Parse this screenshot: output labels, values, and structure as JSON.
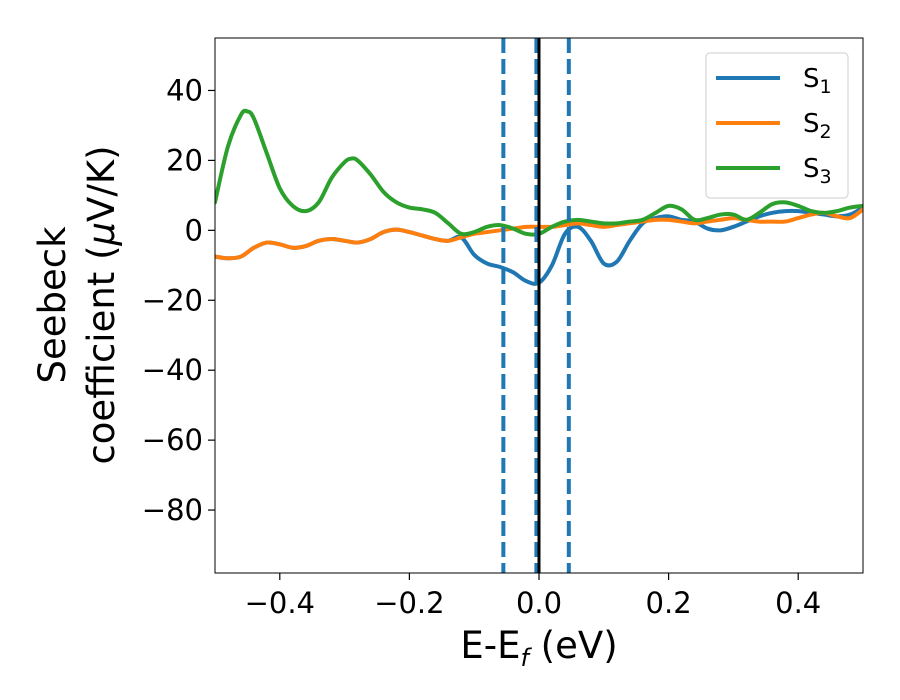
{
  "chart_data": {
    "type": "line",
    "xlabel": {
      "main": "E-E",
      "sub": "f",
      "suffix": " (eV)"
    },
    "ylabel": {
      "line1": "Seebeck",
      "line2_prefix": "coefficient  (",
      "mu": "μ",
      "line2_suffix": "V/K)"
    },
    "xlim": [
      -0.5,
      0.5
    ],
    "ylim": [
      -98,
      55
    ],
    "xticks": [
      -0.4,
      -0.2,
      0.0,
      0.2,
      0.4
    ],
    "xtick_labels": [
      "−0.4",
      "−0.2",
      "0.0",
      "0.2",
      "0.4"
    ],
    "yticks": [
      40,
      20,
      0,
      -20,
      -40,
      -60,
      -80
    ],
    "ytick_labels": [
      "40",
      "20",
      "0",
      "−20",
      "−40",
      "−60",
      "−80"
    ],
    "legend_position": "top-right",
    "vlines": [
      {
        "x": -0.055,
        "style": "dashed",
        "color": "#1f77b4"
      },
      {
        "x": -0.004,
        "style": "dashed",
        "color": "#1f77b4"
      },
      {
        "x": 0.0,
        "style": "solid",
        "color": "#000000"
      },
      {
        "x": 0.046,
        "style": "dashed",
        "color": "#1f77b4"
      }
    ],
    "series": [
      {
        "name": "S1",
        "label_main": "S",
        "label_sub": "1",
        "color": "#1f77b4",
        "x": [
          -0.5,
          -0.48,
          -0.46,
          -0.44,
          -0.42,
          -0.4,
          -0.38,
          -0.36,
          -0.34,
          -0.32,
          -0.3,
          -0.28,
          -0.26,
          -0.24,
          -0.22,
          -0.2,
          -0.18,
          -0.16,
          -0.14,
          -0.12,
          -0.1,
          -0.08,
          -0.06,
          -0.04,
          -0.02,
          0.0,
          0.02,
          0.04,
          0.06,
          0.08,
          0.1,
          0.12,
          0.14,
          0.16,
          0.18,
          0.2,
          0.22,
          0.24,
          0.26,
          0.28,
          0.3,
          0.32,
          0.34,
          0.36,
          0.38,
          0.4,
          0.42,
          0.44,
          0.46,
          0.48,
          0.5
        ],
        "y": [
          -7.5,
          -8.0,
          -7.5,
          -5.0,
          -3.5,
          -4.0,
          -5.0,
          -4.5,
          -3.0,
          -2.5,
          -3.0,
          -3.5,
          -2.5,
          -0.5,
          0.2,
          -0.5,
          -1.5,
          -2.5,
          -3.0,
          -2.0,
          -7.0,
          -9.5,
          -10.5,
          -12.0,
          -14.5,
          -15.0,
          -10.0,
          -1.0,
          1.0,
          -3.0,
          -9.5,
          -9.0,
          -3.0,
          2.0,
          3.5,
          4.0,
          3.0,
          2.5,
          0.5,
          0.0,
          1.0,
          2.5,
          4.0,
          5.0,
          5.5,
          5.5,
          5.0,
          4.5,
          4.0,
          4.5,
          6.5
        ]
      },
      {
        "name": "S2",
        "label_main": "S",
        "label_sub": "2",
        "color": "#ff7f0e",
        "x": [
          -0.5,
          -0.48,
          -0.46,
          -0.44,
          -0.42,
          -0.4,
          -0.38,
          -0.36,
          -0.34,
          -0.32,
          -0.3,
          -0.28,
          -0.26,
          -0.24,
          -0.22,
          -0.2,
          -0.18,
          -0.16,
          -0.14,
          -0.12,
          -0.1,
          -0.08,
          -0.06,
          -0.04,
          -0.02,
          0.0,
          0.02,
          0.04,
          0.06,
          0.08,
          0.1,
          0.12,
          0.14,
          0.16,
          0.18,
          0.2,
          0.22,
          0.24,
          0.26,
          0.28,
          0.3,
          0.32,
          0.34,
          0.36,
          0.38,
          0.4,
          0.42,
          0.44,
          0.46,
          0.48,
          0.5
        ],
        "y": [
          -7.5,
          -8.0,
          -7.5,
          -5.0,
          -3.5,
          -4.0,
          -5.0,
          -4.5,
          -3.0,
          -2.5,
          -3.0,
          -3.5,
          -2.5,
          -0.5,
          0.2,
          -0.5,
          -1.5,
          -2.5,
          -3.0,
          -2.0,
          -1.0,
          -0.5,
          0.0,
          0.5,
          1.0,
          1.0,
          1.0,
          1.5,
          2.0,
          1.5,
          1.0,
          1.5,
          2.0,
          2.5,
          3.0,
          3.0,
          2.5,
          2.0,
          2.5,
          3.0,
          3.5,
          3.0,
          2.5,
          2.5,
          2.5,
          3.5,
          4.5,
          5.0,
          4.0,
          3.5,
          6.0
        ]
      },
      {
        "name": "S3",
        "label_main": "S",
        "label_sub": "3",
        "color": "#2ca02c",
        "x": [
          -0.5,
          -0.48,
          -0.46,
          -0.45,
          -0.44,
          -0.42,
          -0.4,
          -0.38,
          -0.36,
          -0.34,
          -0.32,
          -0.3,
          -0.29,
          -0.28,
          -0.26,
          -0.24,
          -0.22,
          -0.2,
          -0.18,
          -0.16,
          -0.14,
          -0.12,
          -0.1,
          -0.08,
          -0.06,
          -0.04,
          -0.02,
          0.0,
          0.02,
          0.04,
          0.06,
          0.08,
          0.1,
          0.12,
          0.14,
          0.16,
          0.18,
          0.2,
          0.22,
          0.24,
          0.26,
          0.28,
          0.3,
          0.32,
          0.34,
          0.36,
          0.38,
          0.4,
          0.42,
          0.44,
          0.46,
          0.48,
          0.5
        ],
        "y": [
          8.0,
          24.0,
          33.0,
          34.0,
          32.0,
          22.0,
          12.0,
          7.0,
          5.5,
          8.0,
          15.0,
          19.5,
          20.5,
          20.0,
          16.0,
          11.0,
          8.0,
          6.5,
          6.0,
          5.0,
          2.0,
          -1.0,
          -0.5,
          1.0,
          1.5,
          0.5,
          -1.0,
          -1.0,
          1.0,
          2.5,
          3.0,
          2.5,
          2.0,
          2.0,
          2.5,
          3.0,
          5.0,
          7.0,
          6.0,
          3.0,
          3.5,
          4.5,
          4.5,
          3.0,
          5.0,
          7.5,
          8.0,
          7.0,
          5.5,
          5.0,
          5.5,
          6.5,
          7.0
        ]
      }
    ]
  }
}
